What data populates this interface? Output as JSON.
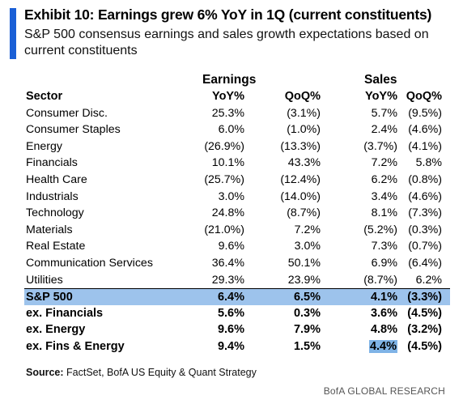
{
  "header": {
    "title": "Exhibit 10: Earnings grew  6% YoY in 1Q (current constituents)",
    "subtitle": "S&P 500 consensus earnings and sales growth expectations based on current constituents",
    "accent_color": "#1a5fd6"
  },
  "table": {
    "group_headers": {
      "earnings": "Earnings",
      "sales": "Sales"
    },
    "columns": [
      "Sector",
      "YoY%",
      "QoQ%",
      "YoY%",
      "QoQ%"
    ],
    "rows": [
      [
        "Consumer Disc.",
        "25.3%",
        "(3.1%)",
        "5.7%",
        "(9.5%)"
      ],
      [
        "Consumer Staples",
        "6.0%",
        "(1.0%)",
        "2.4%",
        "(4.6%)"
      ],
      [
        "Energy",
        "(26.9%)",
        "(13.3%)",
        "(3.7%)",
        "(4.1%)"
      ],
      [
        "Financials",
        "10.1%",
        "43.3%",
        "7.2%",
        "5.8%"
      ],
      [
        "Health Care",
        "(25.7%)",
        "(12.4%)",
        "6.2%",
        "(0.8%)"
      ],
      [
        "Industrials",
        "3.0%",
        "(14.0%)",
        "3.4%",
        "(4.6%)"
      ],
      [
        "Technology",
        "24.8%",
        "(8.7%)",
        "8.1%",
        "(7.3%)"
      ],
      [
        "Materials",
        "(21.0%)",
        "7.2%",
        "(5.2%)",
        "(0.3%)"
      ],
      [
        "Real Estate",
        "9.6%",
        "3.0%",
        "7.3%",
        "(0.7%)"
      ],
      [
        "Communication Services",
        "36.4%",
        "50.1%",
        "6.9%",
        "(6.4%)"
      ],
      [
        "Utilities",
        "29.3%",
        "23.9%",
        "(8.7%)",
        "6.2%"
      ]
    ],
    "summary_rows": [
      [
        "S&P 500",
        "6.4%",
        "6.5%",
        "4.1%",
        "(3.3%)"
      ],
      [
        "ex. Financials",
        "5.6%",
        "0.3%",
        "3.6%",
        "(4.5%)"
      ],
      [
        "ex. Energy",
        "9.6%",
        "7.9%",
        "4.8%",
        "(3.2%)"
      ],
      [
        "ex. Fins & Energy",
        "9.4%",
        "1.5%",
        "4.4%",
        "(4.5%)"
      ]
    ],
    "highlight_color": "#9dc3ec"
  },
  "footer": {
    "source_label": "Source:",
    "source_text": " FactSet, BofA US Equity & Quant Strategy",
    "brand": "BofA GLOBAL RESEARCH"
  }
}
